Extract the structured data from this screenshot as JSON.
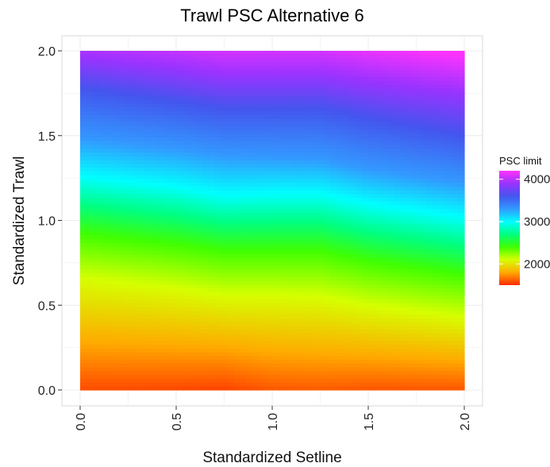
{
  "chart_data": {
    "type": "heatmap",
    "title": "Trawl PSC Alternative 6",
    "xlabel": "Standardized Setline",
    "ylabel": "Standardized Trawl",
    "xlim": [
      0.0,
      2.0
    ],
    "ylim": [
      0.0,
      2.0
    ],
    "x_ticks": [
      "0.0",
      "0.5",
      "1.0",
      "1.5",
      "2.0"
    ],
    "y_ticks": [
      "0.0",
      "0.5",
      "1.0",
      "1.5",
      "2.0"
    ],
    "grid": true,
    "legend": {
      "title": "PSC limit",
      "placement": "right",
      "min": 1500,
      "max": 4200,
      "ticks": [
        {
          "value": 2000,
          "label": "2000"
        },
        {
          "value": 3000,
          "label": "3000"
        },
        {
          "value": 4000,
          "label": "4000"
        }
      ]
    },
    "colormap": [
      {
        "value": 1500,
        "color": "#ff2a00"
      },
      {
        "value": 1800,
        "color": "#ffaa00"
      },
      {
        "value": 2100,
        "color": "#d6ff00"
      },
      {
        "value": 2400,
        "color": "#40ff00"
      },
      {
        "value": 2700,
        "color": "#00ff80"
      },
      {
        "value": 3000,
        "color": "#00ffff"
      },
      {
        "value": 3300,
        "color": "#3399ff"
      },
      {
        "value": 3600,
        "color": "#4455ee"
      },
      {
        "value": 3900,
        "color": "#9933ff"
      },
      {
        "value": 4200,
        "color": "#ff33ff"
      }
    ],
    "contours": [
      {
        "level": 1800,
        "x": [
          0.0,
          0.5,
          0.75,
          1.0,
          1.25,
          1.5,
          2.0
        ],
        "y": [
          0.28,
          0.26,
          0.25,
          0.22,
          0.21,
          0.2,
          0.17
        ]
      },
      {
        "level": 2100,
        "x": [
          0.0,
          0.5,
          0.75,
          1.0,
          1.25,
          1.5,
          2.0
        ],
        "y": [
          0.66,
          0.6,
          0.56,
          0.56,
          0.55,
          0.5,
          0.43
        ]
      },
      {
        "level": 2400,
        "x": [
          0.0,
          0.5,
          0.75,
          1.0,
          1.25,
          1.5,
          2.0
        ],
        "y": [
          0.92,
          0.86,
          0.82,
          0.82,
          0.82,
          0.76,
          0.68
        ]
      },
      {
        "level": 3000,
        "x": [
          0.0,
          0.5,
          0.75,
          1.0,
          1.25,
          1.5,
          2.0
        ],
        "y": [
          1.26,
          1.2,
          1.15,
          1.16,
          1.16,
          1.1,
          1.02
        ]
      },
      {
        "level": 3300,
        "x": [
          0.0,
          0.5,
          0.75,
          1.0,
          1.25,
          1.5,
          2.0
        ],
        "y": [
          1.48,
          1.42,
          1.38,
          1.37,
          1.36,
          1.3,
          1.22
        ]
      },
      {
        "level": 3600,
        "x": [
          0.0,
          0.5,
          0.75,
          1.0,
          1.25,
          1.5,
          2.0
        ],
        "y": [
          1.78,
          1.7,
          1.66,
          1.66,
          1.66,
          1.6,
          1.5
        ]
      },
      {
        "level": 3900,
        "x": [
          0.0,
          0.5,
          0.75,
          1.0,
          1.25,
          1.5,
          2.0
        ],
        "y": [
          1.96,
          1.9,
          1.86,
          1.86,
          1.86,
          1.82,
          1.75
        ]
      },
      {
        "level": 4200,
        "x": [
          0.0,
          0.5,
          0.75,
          1.0,
          1.25,
          1.5,
          2.0
        ],
        "y": [
          2.2,
          2.14,
          2.1,
          2.1,
          2.1,
          2.05,
          1.98
        ]
      }
    ]
  }
}
